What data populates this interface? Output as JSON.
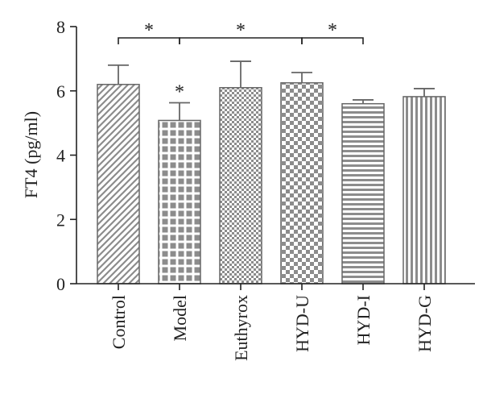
{
  "chart_data": {
    "type": "bar",
    "title": "",
    "xlabel": "",
    "ylabel": "FT4 (pg/ml)",
    "ylim": [
      0,
      8
    ],
    "yticks": [
      0,
      2,
      4,
      6,
      8
    ],
    "categories": [
      "Control",
      "Model",
      "Euthyrox",
      "HYD-U",
      "HYD-I",
      "HYD-G"
    ],
    "values": [
      6.2,
      5.08,
      6.1,
      6.25,
      5.6,
      5.82
    ],
    "errors": [
      0.6,
      0.55,
      0.82,
      0.32,
      0.12,
      0.25
    ],
    "patterns": [
      "diagonal-hatch",
      "grid-squares",
      "fine-checker",
      "checker",
      "horizontal-lines",
      "vertical-lines"
    ],
    "grid": false,
    "legend": "none",
    "bar_annotations": [
      {
        "category": "Model",
        "label": "*"
      }
    ],
    "significance_brackets": [
      {
        "from": "Control",
        "to": "Model",
        "label": "*"
      },
      {
        "from": "Model",
        "to": "HYD-U",
        "label": "*"
      },
      {
        "from": "HYD-U",
        "to": "HYD-I",
        "label": "*"
      }
    ],
    "colors": {
      "bar_stroke": "#666666",
      "pattern": "#8c8c8c",
      "axis": "#222222"
    }
  }
}
